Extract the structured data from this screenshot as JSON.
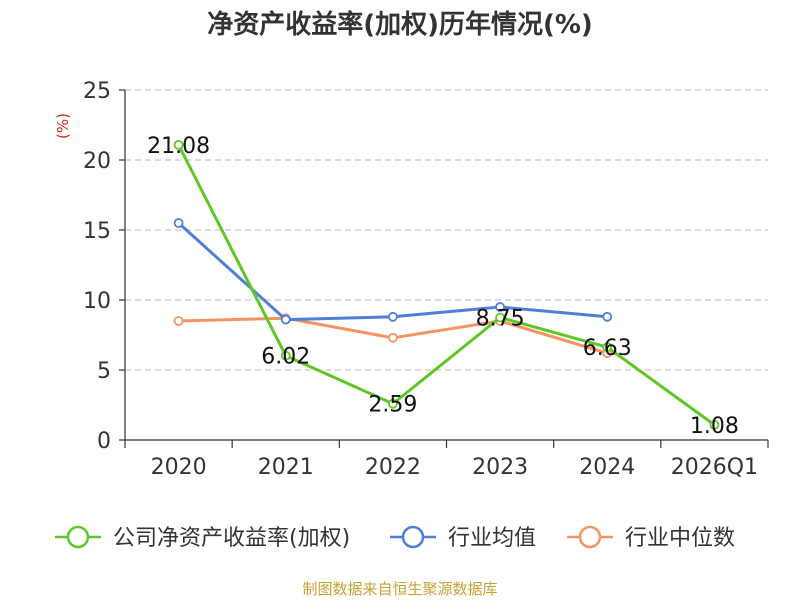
{
  "chart_data": {
    "type": "line",
    "title": "净资产收益率(加权)历年情况(%)",
    "ylabel": "(%)",
    "xlabel": "",
    "ylim": [
      0,
      25
    ],
    "yticks": [
      0,
      5,
      10,
      15,
      20,
      25
    ],
    "categories": [
      "2020",
      "2021",
      "2022",
      "2023",
      "2024",
      "2026Q1"
    ],
    "grid": true,
    "legend_position": "bottom",
    "series": [
      {
        "name": "公司净资产收益率(加权)",
        "color": "#5fc724",
        "values": [
          21.08,
          6.02,
          2.59,
          8.75,
          6.63,
          1.08
        ],
        "labels": [
          "21.08",
          "6.02",
          "2.59",
          "8.75",
          "6.63",
          "1.08"
        ]
      },
      {
        "name": "行业均值",
        "color": "#4f7fdc",
        "values": [
          15.5,
          8.6,
          8.8,
          9.5,
          8.8,
          null
        ]
      },
      {
        "name": "行业中位数",
        "color": "#f59462",
        "values": [
          8.5,
          8.7,
          7.3,
          8.5,
          6.2,
          null
        ]
      }
    ],
    "source": "制图数据来自恒生聚源数据库"
  }
}
